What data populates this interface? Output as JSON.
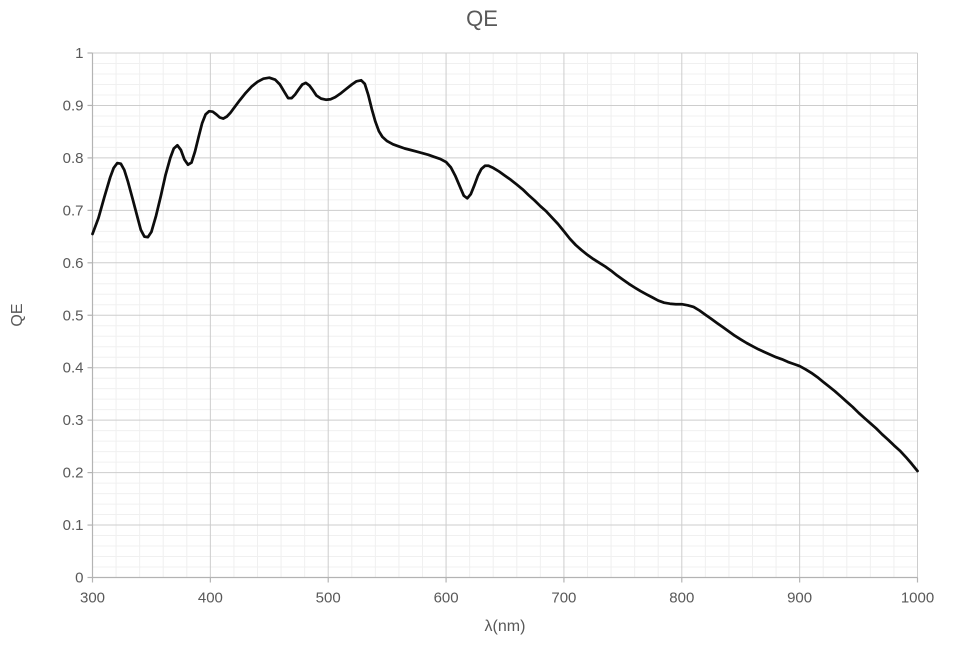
{
  "chart": {
    "title": "QE",
    "x_axis_title": "λ(nm)",
    "y_axis_title": "QE"
  },
  "colors": {
    "background": "#ffffff",
    "title_text": "#595959",
    "tick_text": "#595959",
    "axis_line": "#b3b3b3",
    "grid_major": "#cdcdcd",
    "grid_minor": "#f0f0f0",
    "curve": "#0d0d0d"
  },
  "chart_data": {
    "type": "line",
    "title": "QE",
    "xlabel": "λ(nm)",
    "ylabel": "QE",
    "xlim": [
      300,
      1000
    ],
    "ylim": [
      0,
      1
    ],
    "x_major": 100,
    "x_minor": 20,
    "y_major": 0.1,
    "y_minor": 0.02,
    "x_tick_labels": [
      "300",
      "400",
      "500",
      "600",
      "700",
      "800",
      "900",
      "1000"
    ],
    "y_tick_labels": [
      "0",
      "0.1",
      "0.2",
      "0.3",
      "0.4",
      "0.5",
      "0.6",
      "0.7",
      "0.8",
      "0.9",
      "1"
    ],
    "grid": "major+minor",
    "legend": "none",
    "series": [
      {
        "name": "QE",
        "x": [
          300,
          305,
          310,
          315,
          318,
          321,
          324,
          327,
          330,
          334,
          338,
          341,
          344,
          347,
          350,
          354,
          358,
          362,
          366,
          369,
          372,
          375,
          378,
          381,
          384,
          387,
          390,
          393,
          396,
          399,
          402,
          405,
          408,
          411,
          414,
          417,
          420,
          425,
          430,
          435,
          440,
          445,
          450,
          455,
          459,
          463,
          466,
          469,
          472,
          475,
          478,
          481,
          484,
          487,
          490,
          494,
          498,
          502,
          506,
          510,
          515,
          520,
          524,
          528,
          531,
          534,
          537,
          540,
          543,
          546,
          550,
          555,
          560,
          565,
          570,
          575,
          580,
          585,
          590,
          595,
          600,
          604,
          608,
          612,
          615,
          618,
          621,
          624,
          627,
          630,
          633,
          636,
          640,
          645,
          650,
          655,
          660,
          665,
          670,
          675,
          680,
          685,
          690,
          695,
          700,
          705,
          710,
          715,
          720,
          725,
          730,
          735,
          740,
          745,
          750,
          755,
          760,
          765,
          770,
          775,
          780,
          785,
          790,
          795,
          800,
          805,
          810,
          815,
          820,
          825,
          830,
          835,
          840,
          845,
          850,
          855,
          860,
          865,
          870,
          875,
          880,
          885,
          890,
          895,
          900,
          905,
          910,
          915,
          920,
          925,
          930,
          935,
          940,
          945,
          950,
          955,
          960,
          965,
          970,
          975,
          980,
          985,
          990,
          995,
          1000
        ],
        "y": [
          0.655,
          0.685,
          0.725,
          0.763,
          0.781,
          0.79,
          0.789,
          0.777,
          0.755,
          0.722,
          0.688,
          0.663,
          0.65,
          0.649,
          0.659,
          0.69,
          0.728,
          0.768,
          0.8,
          0.818,
          0.824,
          0.815,
          0.797,
          0.787,
          0.791,
          0.812,
          0.84,
          0.866,
          0.883,
          0.889,
          0.888,
          0.883,
          0.877,
          0.875,
          0.879,
          0.886,
          0.895,
          0.91,
          0.924,
          0.936,
          0.945,
          0.951,
          0.953,
          0.949,
          0.94,
          0.925,
          0.914,
          0.914,
          0.921,
          0.931,
          0.94,
          0.943,
          0.938,
          0.929,
          0.919,
          0.913,
          0.911,
          0.912,
          0.916,
          0.922,
          0.931,
          0.94,
          0.946,
          0.948,
          0.941,
          0.92,
          0.893,
          0.869,
          0.851,
          0.84,
          0.832,
          0.826,
          0.822,
          0.818,
          0.815,
          0.812,
          0.809,
          0.806,
          0.802,
          0.798,
          0.792,
          0.782,
          0.765,
          0.744,
          0.728,
          0.723,
          0.731,
          0.748,
          0.766,
          0.779,
          0.785,
          0.785,
          0.781,
          0.774,
          0.766,
          0.758,
          0.749,
          0.74,
          0.729,
          0.719,
          0.708,
          0.698,
          0.686,
          0.674,
          0.66,
          0.646,
          0.634,
          0.624,
          0.615,
          0.607,
          0.6,
          0.593,
          0.585,
          0.576,
          0.568,
          0.56,
          0.553,
          0.546,
          0.54,
          0.534,
          0.528,
          0.524,
          0.522,
          0.521,
          0.521,
          0.519,
          0.516,
          0.509,
          0.501,
          0.493,
          0.485,
          0.477,
          0.469,
          0.461,
          0.454,
          0.447,
          0.441,
          0.435,
          0.43,
          0.425,
          0.42,
          0.416,
          0.411,
          0.407,
          0.403,
          0.397,
          0.39,
          0.382,
          0.373,
          0.364,
          0.355,
          0.345,
          0.335,
          0.325,
          0.314,
          0.304,
          0.294,
          0.284,
          0.273,
          0.263,
          0.252,
          0.242,
          0.23,
          0.217,
          0.203
        ]
      }
    ]
  }
}
